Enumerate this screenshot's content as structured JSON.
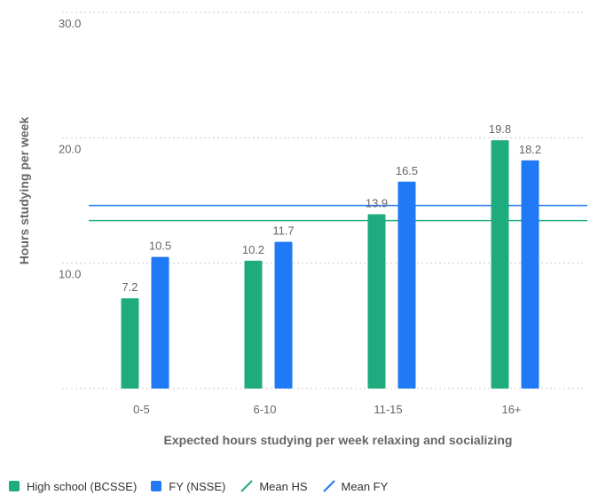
{
  "chart_data": {
    "type": "bar",
    "categories": [
      "0-5",
      "6-10",
      "11-15",
      "16+"
    ],
    "series": [
      {
        "name": "High school (BCSSE)",
        "values": [
          7.2,
          10.2,
          13.9,
          19.8
        ],
        "color": "#1eab7e"
      },
      {
        "name": "FY (NSSE)",
        "values": [
          10.5,
          11.7,
          16.5,
          18.2
        ],
        "color": "#2079f5"
      }
    ],
    "reference_lines": [
      {
        "name": "Mean HS",
        "value": 13.4,
        "color": "#1eab7e"
      },
      {
        "name": "Mean FY",
        "value": 14.6,
        "color": "#2079f5"
      }
    ],
    "y_ticks": [
      "10.0",
      "20.0",
      "30.0"
    ],
    "ylim": [
      0,
      30
    ],
    "xlabel": "Expected hours studying per week relaxing and socializing",
    "ylabel": "Hours studying per week",
    "grid": "horizontal dotted",
    "legend_position": "bottom-left"
  }
}
